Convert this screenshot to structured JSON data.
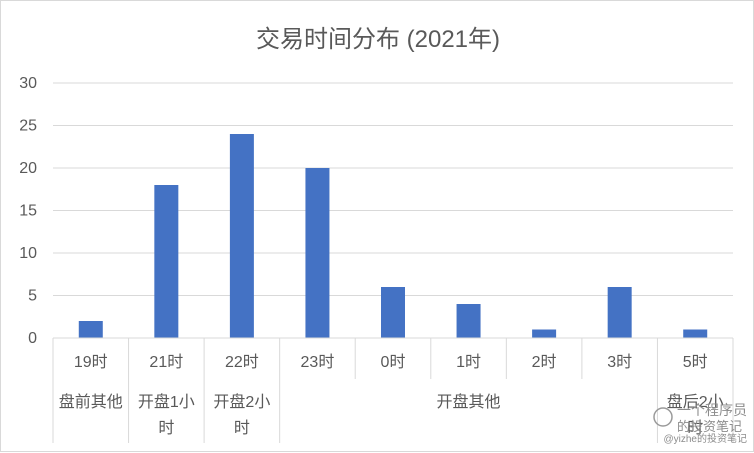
{
  "chart_data": {
    "type": "bar",
    "title": "交易时间分布 (2021年)",
    "categories": [
      "19时",
      "21时",
      "22时",
      "23时",
      "0时",
      "1时",
      "2时",
      "3时",
      "5时"
    ],
    "groups": [
      {
        "lines": [
          "盘前其他"
        ],
        "span": [
          0,
          0
        ]
      },
      {
        "lines": [
          "开盘1小",
          "时"
        ],
        "span": [
          1,
          1
        ]
      },
      {
        "lines": [
          "开盘2小",
          "时"
        ],
        "span": [
          2,
          2
        ]
      },
      {
        "lines": [
          "开盘其他"
        ],
        "span": [
          3,
          7
        ]
      },
      {
        "lines": [
          "盘后2小",
          "时"
        ],
        "span": [
          8,
          8
        ]
      }
    ],
    "series": [
      {
        "values": [
          2,
          18,
          24,
          20,
          6,
          4,
          1,
          6,
          1
        ]
      }
    ],
    "yticks": [
      "0",
      "5",
      "10",
      "15",
      "20",
      "25",
      "30"
    ],
    "ylim": [
      0,
      30
    ],
    "xlabel": "",
    "ylabel": "",
    "grid": true,
    "bar_color": "#4472c4"
  },
  "watermark": {
    "line1": "一个程序员",
    "line2": "的投资笔记",
    "handle": "@yizhe的投资笔记"
  }
}
